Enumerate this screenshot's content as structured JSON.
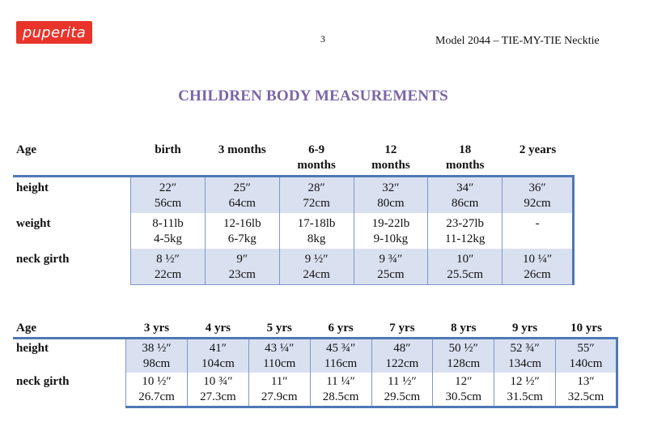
{
  "header": {
    "logo_text": "puperita",
    "page_number": "3",
    "model": "Model 2044 – TIE-MY-TIE Necktie"
  },
  "title": "CHILDREN BODY MEASUREMENTS",
  "table1": {
    "age_label": "Age",
    "columns": [
      [
        "birth",
        ""
      ],
      [
        "3 months",
        ""
      ],
      [
        "6-9",
        "months"
      ],
      [
        "12",
        "months"
      ],
      [
        "18",
        "months"
      ],
      [
        "2 years",
        ""
      ]
    ],
    "rows": [
      {
        "label": "height",
        "top": [
          "22″",
          "25″",
          "28″",
          "32″",
          "34″",
          "36″"
        ],
        "bottom": [
          "56cm",
          "64cm",
          "72cm",
          "80cm",
          "86cm",
          "92cm"
        ]
      },
      {
        "label": "weight",
        "top": [
          "8-11lb",
          "12-16lb",
          "17-18lb",
          "19-22lb",
          "23-27lb",
          "-"
        ],
        "bottom": [
          "4-5kg",
          "6-7kg",
          "8kg",
          "9-10kg",
          "11-12kg",
          ""
        ]
      },
      {
        "label": "neck girth",
        "top": [
          "8 ½″",
          "9″",
          "9 ½″",
          "9 ¾″",
          "10″",
          "10 ¼″"
        ],
        "bottom": [
          "22cm",
          "23cm",
          "24cm",
          "25cm",
          "25.5cm",
          "26cm"
        ]
      }
    ]
  },
  "table2": {
    "age_label": "Age",
    "columns": [
      "3 yrs",
      "4 yrs",
      "5 yrs",
      "6 yrs",
      "7 yrs",
      "8 yrs",
      "9 yrs",
      "10 yrs"
    ],
    "rows": [
      {
        "label": "height",
        "top": [
          "38 ½″",
          "41″",
          "43 ¼″",
          "45 ¾″",
          "48″",
          "50 ½″",
          "52 ¾″",
          "55″"
        ],
        "bottom": [
          "98cm",
          "104cm",
          "110cm",
          "116cm",
          "122cm",
          "128cm",
          "134cm",
          "140cm"
        ]
      },
      {
        "label": "neck girth",
        "top": [
          "10 ½″",
          "10 ¾″",
          "11″",
          "11 ¼″",
          "11 ½″",
          "12″",
          "12 ½″",
          "13″"
        ],
        "bottom": [
          "26.7cm",
          "27.3cm",
          "27.9cm",
          "28.5cm",
          "29.5cm",
          "30.5cm",
          "31.5cm",
          "32.5cm"
        ]
      }
    ]
  },
  "colors": {
    "title": "#7a65a6",
    "rule": "#4f78b5",
    "shade": "#d9e0f0",
    "logo": "#e8342b"
  }
}
